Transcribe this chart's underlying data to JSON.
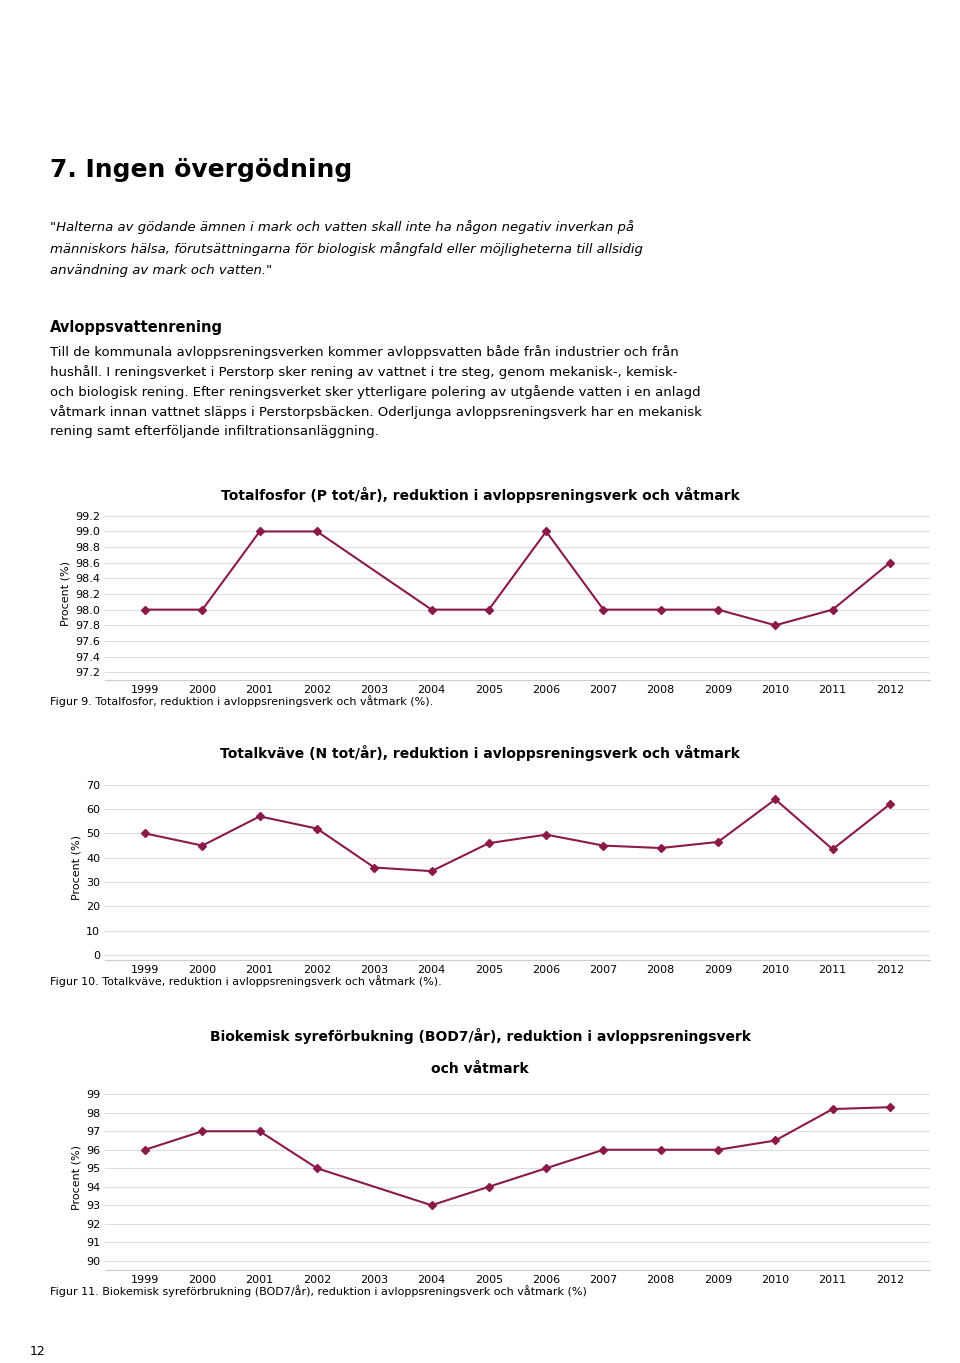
{
  "page_bg": "#ffffff",
  "text_color": "#000000",
  "line_color": "#8B1A4A",
  "heading": "7. Ingen övergödning",
  "quote_line1": "\"Halterna av gödande ämnen i mark och vatten skall inte ha någon negativ inverkan på",
  "quote_line2": "människors hälsa, förutsättningarna för biologisk mångfald eller möjligheterna till allsidig",
  "quote_line3": "användning av mark och vatten.\"",
  "section_heading": "Avloppsvattenrening",
  "body_line1": "Till de kommunala avloppsreningsverken kommer avloppsvatten både från industrier och från",
  "body_line2": "hushåll. I reningsverket i Perstorp sker rening av vattnet i tre steg, genom mekanisk-, kemisk-",
  "body_line3": "och biologisk rening. Efter reningsverket sker ytterligare polering av utgående vatten i en anlagd",
  "body_line4": "våtmark innan vattnet släpps i Perstorpsbäcken. Oderljunga avloppsreningsverk har en mekanisk",
  "body_line5": "rening samt efterföljande infiltrationsanläggning.",
  "chart1_title": "Totalfosfor (P tot/år), reduktion i avloppsreningsverk och våtmark",
  "chart1_years": [
    1999,
    2000,
    2001,
    2002,
    2003,
    2004,
    2005,
    2006,
    2007,
    2008,
    2009,
    2010,
    2011,
    2012
  ],
  "chart1_values": [
    98.0,
    98.0,
    99.0,
    99.0,
    null,
    98.0,
    98.0,
    99.0,
    98.0,
    98.0,
    98.0,
    97.8,
    98.0,
    98.6
  ],
  "chart1_ylabel": "Procent (%)",
  "chart1_yticks": [
    97.2,
    97.4,
    97.6,
    97.8,
    98.0,
    98.2,
    98.4,
    98.6,
    98.8,
    99.0,
    99.2
  ],
  "chart1_ylim": [
    97.1,
    99.3
  ],
  "chart1_caption": "Figur 9. Totalfosfor, reduktion i avloppsreningsverk och våtmark (%).",
  "chart2_title": "Totalkväve (N tot/år), reduktion i avloppsreningsverk och våtmark",
  "chart2_years": [
    1999,
    2000,
    2001,
    2002,
    2003,
    2004,
    2005,
    2006,
    2007,
    2008,
    2009,
    2010,
    2011,
    2012
  ],
  "chart2_values": [
    50.0,
    45.0,
    57.0,
    52.0,
    36.0,
    34.5,
    46.0,
    49.5,
    45.0,
    44.0,
    46.5,
    64.0,
    43.5,
    62.0
  ],
  "chart2_ylabel": "Procent (%)",
  "chart2_yticks": [
    0,
    10,
    20,
    30,
    40,
    50,
    60,
    70
  ],
  "chart2_ylim": [
    -2,
    74
  ],
  "chart2_caption": "Figur 10. Totalkväve, reduktion i avloppsreningsverk och våtmark (%).",
  "chart3_title_line1": "Biokemisk syreförbukning (BOD7/år), reduktion i avloppsreningsverk",
  "chart3_title_line2": "och våtmark",
  "chart3_years": [
    1999,
    2000,
    2001,
    2002,
    2003,
    2004,
    2005,
    2006,
    2007,
    2008,
    2009,
    2010,
    2011,
    2012
  ],
  "chart3_values": [
    96.0,
    97.0,
    97.0,
    95.0,
    null,
    93.0,
    94.0,
    95.0,
    96.0,
    96.0,
    96.0,
    96.5,
    98.2,
    98.3
  ],
  "chart3_ylabel": "Procent (%)",
  "chart3_yticks": [
    90,
    91,
    92,
    93,
    94,
    95,
    96,
    97,
    98,
    99
  ],
  "chart3_ylim": [
    89.5,
    99.5
  ],
  "chart3_caption": "Figur 11. Biokemisk syreförbrukning (BOD7/år), reduktion i avloppsreningsverk och våtmark (%)",
  "footer_number": "12"
}
